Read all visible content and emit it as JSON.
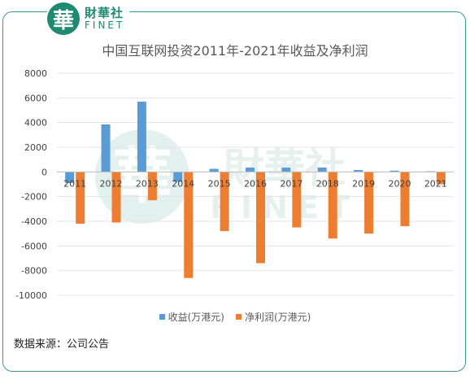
{
  "header": {
    "logo_char": "華",
    "brand_zh": "財華社",
    "brand_en": "FINET"
  },
  "watermark": {
    "char": "華",
    "zh": "財華社",
    "en": "FINET"
  },
  "chart_data": {
    "type": "bar",
    "title": "中国互联网投资2011年-2021年收益及净利润",
    "categories": [
      "2011",
      "2012",
      "2013",
      "2014",
      "2015",
      "2016",
      "2017",
      "2018",
      "2019",
      "2020",
      "2021"
    ],
    "series": [
      {
        "name": "收益(万港元)",
        "color": "#5b9bd5",
        "values": [
          -900,
          3850,
          5700,
          -800,
          250,
          350,
          350,
          350,
          150,
          100,
          50
        ]
      },
      {
        "name": "净利润(万港元)",
        "color": "#ed7d31",
        "values": [
          -4200,
          -4100,
          -2300,
          -8600,
          -4800,
          -7400,
          -4500,
          -5400,
          -5000,
          -4400,
          -1000
        ]
      }
    ],
    "yticks": [
      "8000",
      "6000",
      "4000",
      "2000",
      "0",
      "-2000",
      "-4000",
      "-6000",
      "-8000",
      "-10000"
    ],
    "ylim": [
      -10000,
      8000
    ],
    "grid": true,
    "legend": "bottom"
  },
  "source": "数据来源：公司公告"
}
